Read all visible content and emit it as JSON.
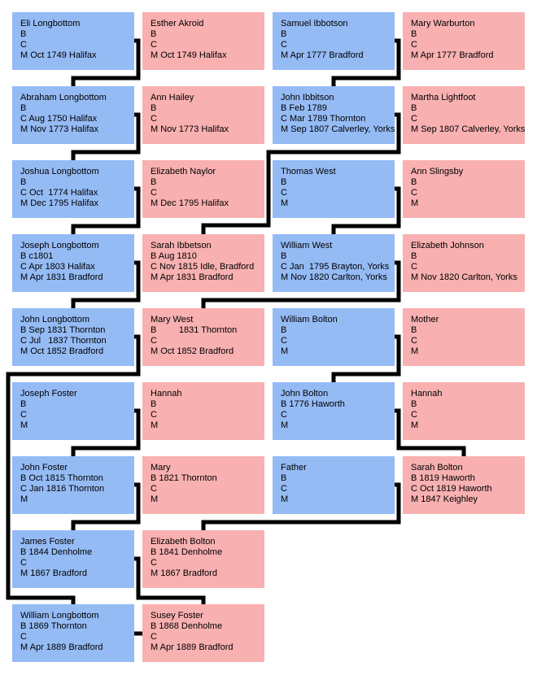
{
  "people": [
    {
      "name": "Eli Longbottom",
      "b": "B",
      "c": "C",
      "m": "M Oct 1749 Halifax"
    },
    {
      "name": "Esther Akroid",
      "b": "B",
      "c": "C",
      "m": "M Oct 1749 Halifax"
    },
    {
      "name": "Samuel Ibbotson",
      "b": "B",
      "c": "C",
      "m": "M Apr 1777 Bradford"
    },
    {
      "name": "Mary Warburton",
      "b": "B",
      "c": "C",
      "m": "M Apr 1777 Bradford"
    },
    {
      "name": "Abraham Longbottom",
      "b": "B",
      "c": "C Aug 1750 Halifax",
      "m": "M Nov 1773 Halifax"
    },
    {
      "name": "Ann Hailey",
      "b": "B",
      "c": "C",
      "m": "M Nov 1773 Halifax"
    },
    {
      "name": "John Ibbitson",
      "b": "B Feb 1789",
      "c": "C Mar 1789 Thornton",
      "m": "M Sep 1807 Calverley, Yorks"
    },
    {
      "name": "Martha Lightfoot",
      "b": "B",
      "c": "C",
      "m": "M Sep 1807 Calverley, Yorks"
    },
    {
      "name": "Joshua Longbottom",
      "b": "B",
      "c": "C Oct  1774 Halifax",
      "m": "M Dec 1795 Halifax"
    },
    {
      "name": "Elizabeth Naylor",
      "b": "B",
      "c": "C",
      "m": "M Dec 1795 Halifax"
    },
    {
      "name": "Thomas West",
      "b": "B",
      "c": "C",
      "m": "M"
    },
    {
      "name": "Ann Slingsby",
      "b": "B",
      "c": "C",
      "m": "M"
    },
    {
      "name": "Joseph Longbottom",
      "b": "B c1801",
      "c": "C Apr 1803 Halifax",
      "m": "M Apr 1831 Bradford"
    },
    {
      "name": "Sarah Ibbetson",
      "b": "B Aug 1810",
      "c": "C Nov 1815 Idle, Bradford",
      "m": "M Apr 1831 Bradford"
    },
    {
      "name": "William West",
      "b": "B",
      "c": "C Jan  1795 Brayton, Yorks",
      "m": "M Nov 1820 Carlton, Yorks"
    },
    {
      "name": "Elizabeth Johnson",
      "b": "B",
      "c": "C",
      "m": "M Nov 1820 Carlton, Yorks"
    },
    {
      "name": "John Longbottom",
      "b": "B Sep 1831 Thornton",
      "c": "C Jul   1837 Thornton",
      "m": "M Oct 1852 Bradford"
    },
    {
      "name": "Mary West",
      "b": "B         1831 Thornton",
      "c": "C",
      "m": "M Oct 1852 Bradford"
    },
    {
      "name": "William Bolton",
      "b": "B",
      "c": "C",
      "m": "M"
    },
    {
      "name": "Mother",
      "b": "B",
      "c": "C",
      "m": "M"
    },
    {
      "name": "Joseph Foster",
      "b": "B",
      "c": "C",
      "m": "M"
    },
    {
      "name": "Hannah",
      "b": "B",
      "c": "C",
      "m": "M"
    },
    {
      "name": "John Bolton",
      "b": "B 1776 Haworth",
      "c": "C",
      "m": "M"
    },
    {
      "name": "Hannah",
      "b": "B",
      "c": "C",
      "m": "M"
    },
    {
      "name": "John Foster",
      "b": "B Oct 1815 Thornton",
      "c": "C Jan 1816 Thornton",
      "m": "M"
    },
    {
      "name": "Mary",
      "b": "B 1821 Thornton",
      "c": "C",
      "m": "M"
    },
    {
      "name": "Father",
      "b": "B",
      "c": "C",
      "m": "M"
    },
    {
      "name": "Sarah Bolton",
      "b": "B 1819 Haworth",
      "c": "C Oct 1819 Haworth",
      "m": "M 1847 Keighley"
    },
    {
      "name": "James Foster",
      "b": "B 1844 Denholme",
      "c": "C",
      "m": "M 1867 Bradford"
    },
    {
      "name": "Elizabeth Bolton",
      "b": "B 1841 Denholme",
      "c": "C",
      "m": "M 1867 Bradford"
    },
    {
      "name": "William Longbottom",
      "b": "B 1869 Thornton",
      "c": "C",
      "m": "M Apr 1889 Bradford"
    },
    {
      "name": "Susey Foster",
      "b": "B 1868 Denholme",
      "c": "C",
      "m": "M Apr 1889 Bradford"
    }
  ]
}
